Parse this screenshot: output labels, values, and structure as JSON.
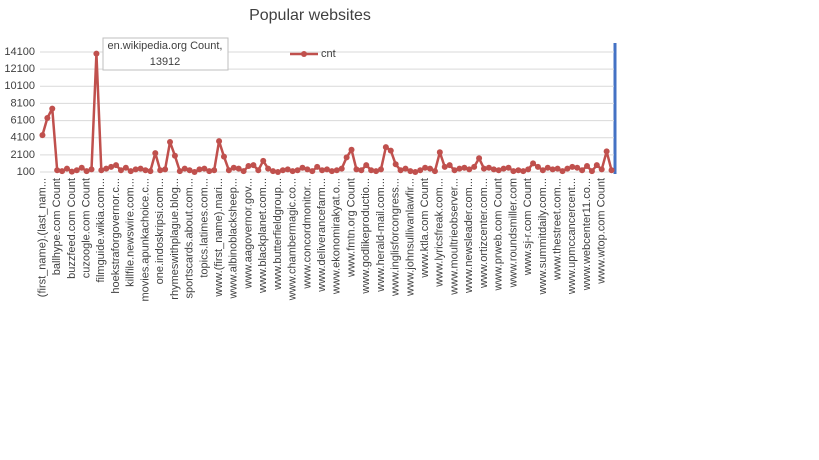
{
  "chart_data": {
    "type": "line",
    "title": "Popular websites",
    "categories": [
      "(first_name).(last_nam...",
      null,
      null,
      "ballhype.com Count",
      null,
      null,
      "buzzfeed.com Count",
      null,
      null,
      "cuzoogle.com Count",
      null,
      null,
      "filmguide.wikia.com...",
      null,
      null,
      "hoekstraforgovernor.c...",
      null,
      null,
      "killfile.newswire.com...",
      null,
      null,
      "movies.apunkachoice.c...",
      null,
      null,
      "one.indoskripsi.com...",
      null,
      null,
      "rhymeswithplague.blog...",
      null,
      null,
      "sportscards.about.com...",
      null,
      null,
      "topics.latimes.com...",
      null,
      null,
      "www.(first_name).mari...",
      null,
      null,
      "www.albinoblacksheep...",
      null,
      null,
      "www.aagovernor.gov...",
      null,
      null,
      "www.blackplanet.com...",
      null,
      null,
      "www.butterfieldgroup...",
      null,
      null,
      "www.chambermagic.co...",
      null,
      null,
      "www.concordmonitor...",
      null,
      null,
      "www.deliverancefarm...",
      null,
      null,
      "www.ekonomirakyat.o...",
      null,
      null,
      "www.fmtn.org Count",
      null,
      null,
      "www.godlikeproductio...",
      null,
      null,
      "www.herald-mail.com...",
      null,
      null,
      "www.inglisforcongress...",
      null,
      null,
      "www.johnsullivanlawfir...",
      null,
      null,
      "www.ktla.com Count",
      null,
      null,
      "www.lyricsfreak.com...",
      null,
      null,
      "www.moultrieobserver...",
      null,
      null,
      "www.newsleader.com...",
      null,
      null,
      "www.ortizcenter.com...",
      null,
      null,
      "www.prweb.com Count",
      null,
      null,
      "www.roundsmiller.com",
      null,
      null,
      "www.sj-r.com Count",
      null,
      null,
      "www.summitdaily.com...",
      null,
      null,
      "www.thestreet.com...",
      null,
      null,
      "www.upmccancercent...",
      null,
      null,
      "www.webcenter11.co...",
      null,
      null,
      "www.wtop.com Count",
      null,
      null
    ],
    "series": [
      {
        "name": "cnt",
        "color": "#c0504d",
        "values": [
          4400,
          6400,
          7500,
          300,
          200,
          500,
          150,
          300,
          600,
          200,
          400,
          13912,
          300,
          500,
          700,
          900,
          300,
          600,
          200,
          400,
          500,
          300,
          200,
          2300,
          300,
          400,
          3600,
          2000,
          200,
          500,
          300,
          100,
          400,
          500,
          200,
          300,
          3700,
          1900,
          300,
          600,
          500,
          200,
          800,
          900,
          300,
          1400,
          500,
          200,
          100,
          300,
          400,
          200,
          300,
          600,
          400,
          200,
          700,
          300,
          400,
          200,
          300,
          500,
          1800,
          2700,
          400,
          300,
          900,
          300,
          200,
          400,
          3000,
          2600,
          1000,
          300,
          500,
          200,
          100,
          300,
          600,
          500,
          200,
          2400,
          700,
          900,
          300,
          500,
          600,
          400,
          700,
          1700,
          500,
          600,
          400,
          300,
          500,
          600,
          200,
          300,
          200,
          400,
          1100,
          700,
          300,
          600,
          400,
          500,
          200,
          500,
          700,
          600,
          300,
          800,
          200,
          900,
          400,
          2500,
          300
        ]
      }
    ],
    "annotation": {
      "text": "en.wikipedia.org Count,",
      "point": 11
    },
    "ylim": [
      100,
      14100
    ],
    "yticks": [
      100,
      2100,
      4100,
      6100,
      8100,
      10100,
      12100,
      14100
    ],
    "grid": true,
    "legend": "top"
  }
}
